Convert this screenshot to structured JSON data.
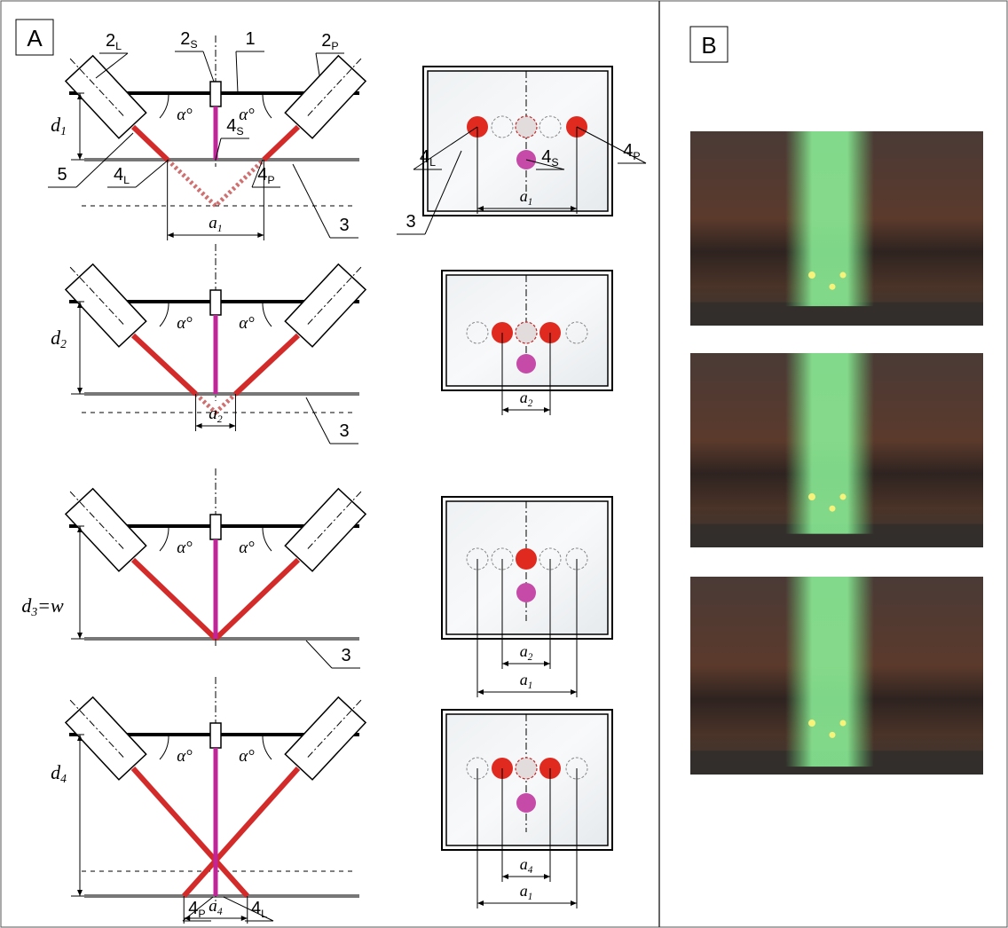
{
  "panel_a": {
    "label": "A",
    "rows": [
      {
        "callouts": [
          {
            "text": "2",
            "sub": "L"
          },
          {
            "text": "2",
            "sub": "S"
          },
          {
            "text": "1"
          },
          {
            "text": "2",
            "sub": "P"
          },
          {
            "text": "5"
          },
          {
            "text": "4",
            "sub": "L"
          },
          {
            "text": "4",
            "sub": "S"
          },
          {
            "text": "4",
            "sub": "P"
          },
          {
            "text": "3"
          }
        ],
        "depth": {
          "text": "d",
          "sub": "1"
        },
        "angles": [
          "α°",
          "α°"
        ],
        "spacing": {
          "text": "a",
          "sub": "1"
        },
        "view_callouts": [
          {
            "text": "4",
            "sub": "L"
          },
          {
            "text": "4",
            "sub": "S"
          },
          {
            "text": "4",
            "sub": "P"
          },
          {
            "text": "3"
          }
        ],
        "view_spacings": [
          {
            "text": "a",
            "sub": "1"
          }
        ]
      },
      {
        "callouts": [
          {
            "text": "3"
          }
        ],
        "depth": {
          "text": "d",
          "sub": "2"
        },
        "angles": [
          "α°",
          "α°"
        ],
        "spacing": {
          "text": "a",
          "sub": "2"
        },
        "view_callouts": [],
        "view_spacings": [
          {
            "text": "a",
            "sub": "2"
          }
        ]
      },
      {
        "callouts": [
          {
            "text": "3"
          }
        ],
        "depth": {
          "text": "d",
          "sub": "3",
          "suffix": "=w"
        },
        "angles": [
          "α°",
          "α°"
        ],
        "view_callouts": [],
        "view_spacings": [
          {
            "text": "a",
            "sub": "2"
          },
          {
            "text": "a",
            "sub": "1"
          }
        ]
      },
      {
        "callouts": [
          {
            "text": "4",
            "sub": "P"
          },
          {
            "text": "4",
            "sub": "L"
          }
        ],
        "depth": {
          "text": "d",
          "sub": "4"
        },
        "angles": [
          "α°",
          "α°"
        ],
        "spacing": {
          "text": "a",
          "sub": "4"
        },
        "view_callouts": [],
        "view_spacings": [
          {
            "text": "a",
            "sub": "4"
          },
          {
            "text": "a",
            "sub": "1"
          }
        ]
      }
    ]
  },
  "panel_b": {
    "label": "B"
  }
}
